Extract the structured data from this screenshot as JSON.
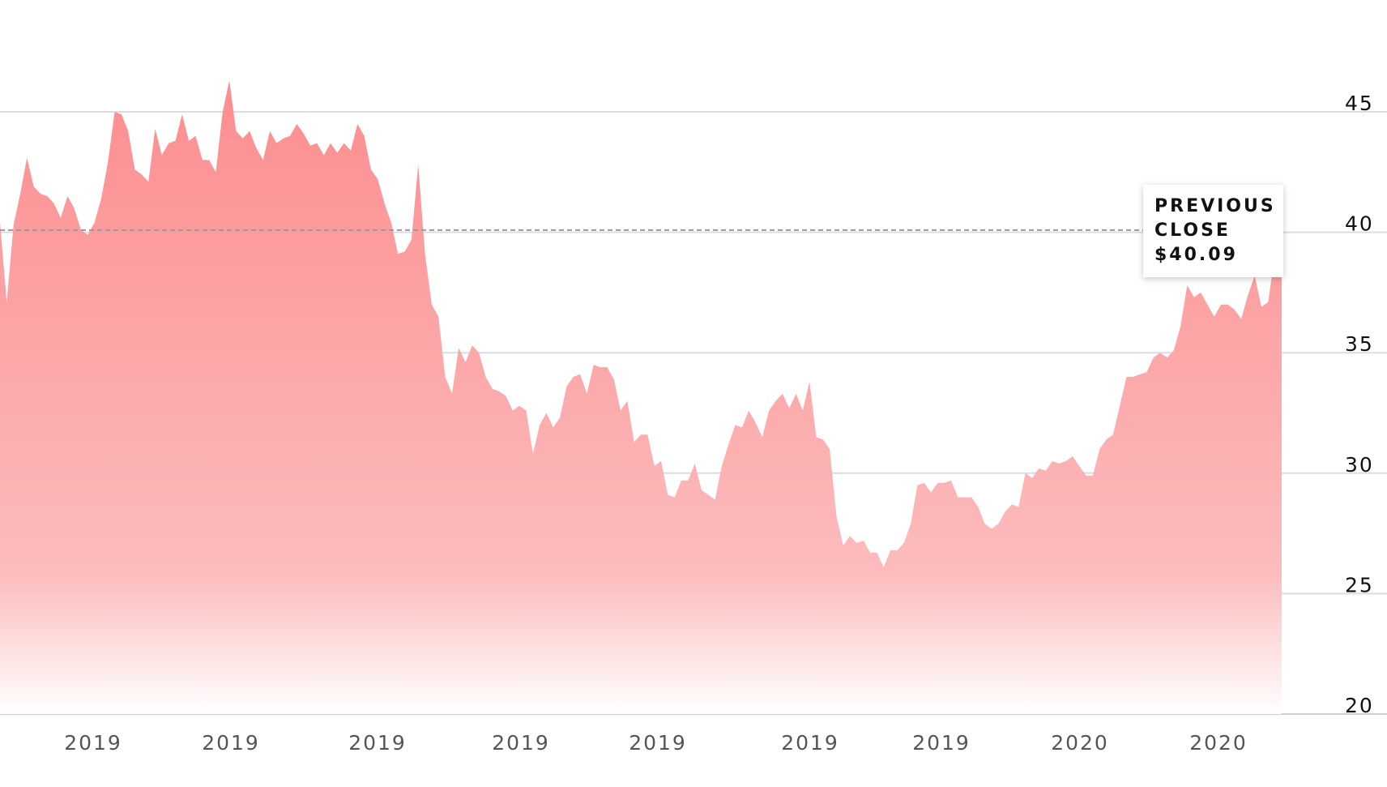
{
  "chart_data": {
    "type": "area",
    "title": "",
    "xlabel": "",
    "ylabel": "",
    "ylim": [
      20,
      48
    ],
    "x_tick_labels": [
      "2019",
      "2019",
      "2019",
      "2019",
      "2019",
      "2019",
      "2019",
      "2020",
      "2020"
    ],
    "y_tick_labels": [
      "45",
      "40",
      "35",
      "30",
      "25",
      "20"
    ],
    "y_tick_values": [
      45,
      40,
      35,
      30,
      25,
      20
    ],
    "reference_line": {
      "value": 40.09,
      "label_line1": "PREVIOUS",
      "label_line2": "CLOSE",
      "label_value": "$40.09"
    },
    "grid": true,
    "colors": {
      "area_top": "#fc8d8f",
      "area_bottom": "#ffffff",
      "grid": "#dcdce3",
      "reference": "#9a9a9a"
    },
    "series": [
      {
        "values": [
          40.4,
          37.1,
          40.3,
          41.6,
          43.1,
          41.9,
          41.6,
          41.5,
          41.2,
          40.6,
          41.5,
          41.0,
          40.1,
          39.9,
          40.4,
          41.4,
          42.9,
          45.0,
          44.9,
          44.2,
          42.6,
          42.4,
          42.1,
          44.3,
          43.2,
          43.7,
          43.8,
          44.9,
          43.8,
          44.0,
          43.0,
          43.0,
          42.5,
          45.0,
          46.3,
          44.2,
          43.9,
          44.2,
          43.5,
          43.0,
          44.2,
          43.7,
          43.9,
          44.0,
          44.5,
          44.1,
          43.6,
          43.7,
          43.2,
          43.7,
          43.3,
          43.7,
          43.4,
          44.5,
          44.0,
          42.6,
          42.2,
          41.2,
          40.4,
          39.1,
          39.2,
          39.7,
          42.8,
          39.1,
          37.0,
          36.5,
          34.0,
          33.3,
          35.2,
          34.6,
          35.3,
          35.0,
          34.0,
          33.5,
          33.4,
          33.2,
          32.6,
          32.8,
          32.6,
          30.8,
          32.0,
          32.5,
          31.9,
          32.3,
          33.6,
          34.0,
          34.1,
          33.3,
          34.5,
          34.4,
          34.4,
          33.9,
          32.6,
          33.0,
          31.3,
          31.6,
          31.6,
          30.3,
          30.5,
          29.1,
          29.0,
          29.7,
          29.7,
          30.4,
          29.3,
          29.1,
          28.9,
          30.3,
          31.2,
          32.0,
          31.9,
          32.6,
          32.1,
          31.5,
          32.6,
          33.0,
          33.3,
          32.7,
          33.3,
          32.6,
          33.8,
          31.5,
          31.4,
          31.0,
          28.2,
          27.0,
          27.4,
          27.1,
          27.2,
          26.7,
          26.7,
          26.1,
          26.8,
          26.8,
          27.1,
          27.9,
          29.5,
          29.6,
          29.2,
          29.6,
          29.6,
          29.7,
          29.0,
          29.0,
          29.0,
          28.6,
          27.9,
          27.7,
          27.9,
          28.4,
          28.7,
          28.6,
          30.0,
          29.8,
          30.2,
          30.1,
          30.5,
          30.4,
          30.5,
          30.7,
          30.3,
          29.9,
          29.9,
          31.0,
          31.4,
          31.6,
          32.8,
          34.0,
          34.0,
          34.1,
          34.2,
          34.8,
          35.0,
          34.8,
          35.1,
          36.1,
          37.8,
          37.3,
          37.5,
          37.0,
          36.5,
          37.0,
          37.0,
          36.8,
          36.4,
          37.4,
          38.2,
          36.9,
          37.1,
          39.1,
          39.7
        ]
      }
    ]
  }
}
